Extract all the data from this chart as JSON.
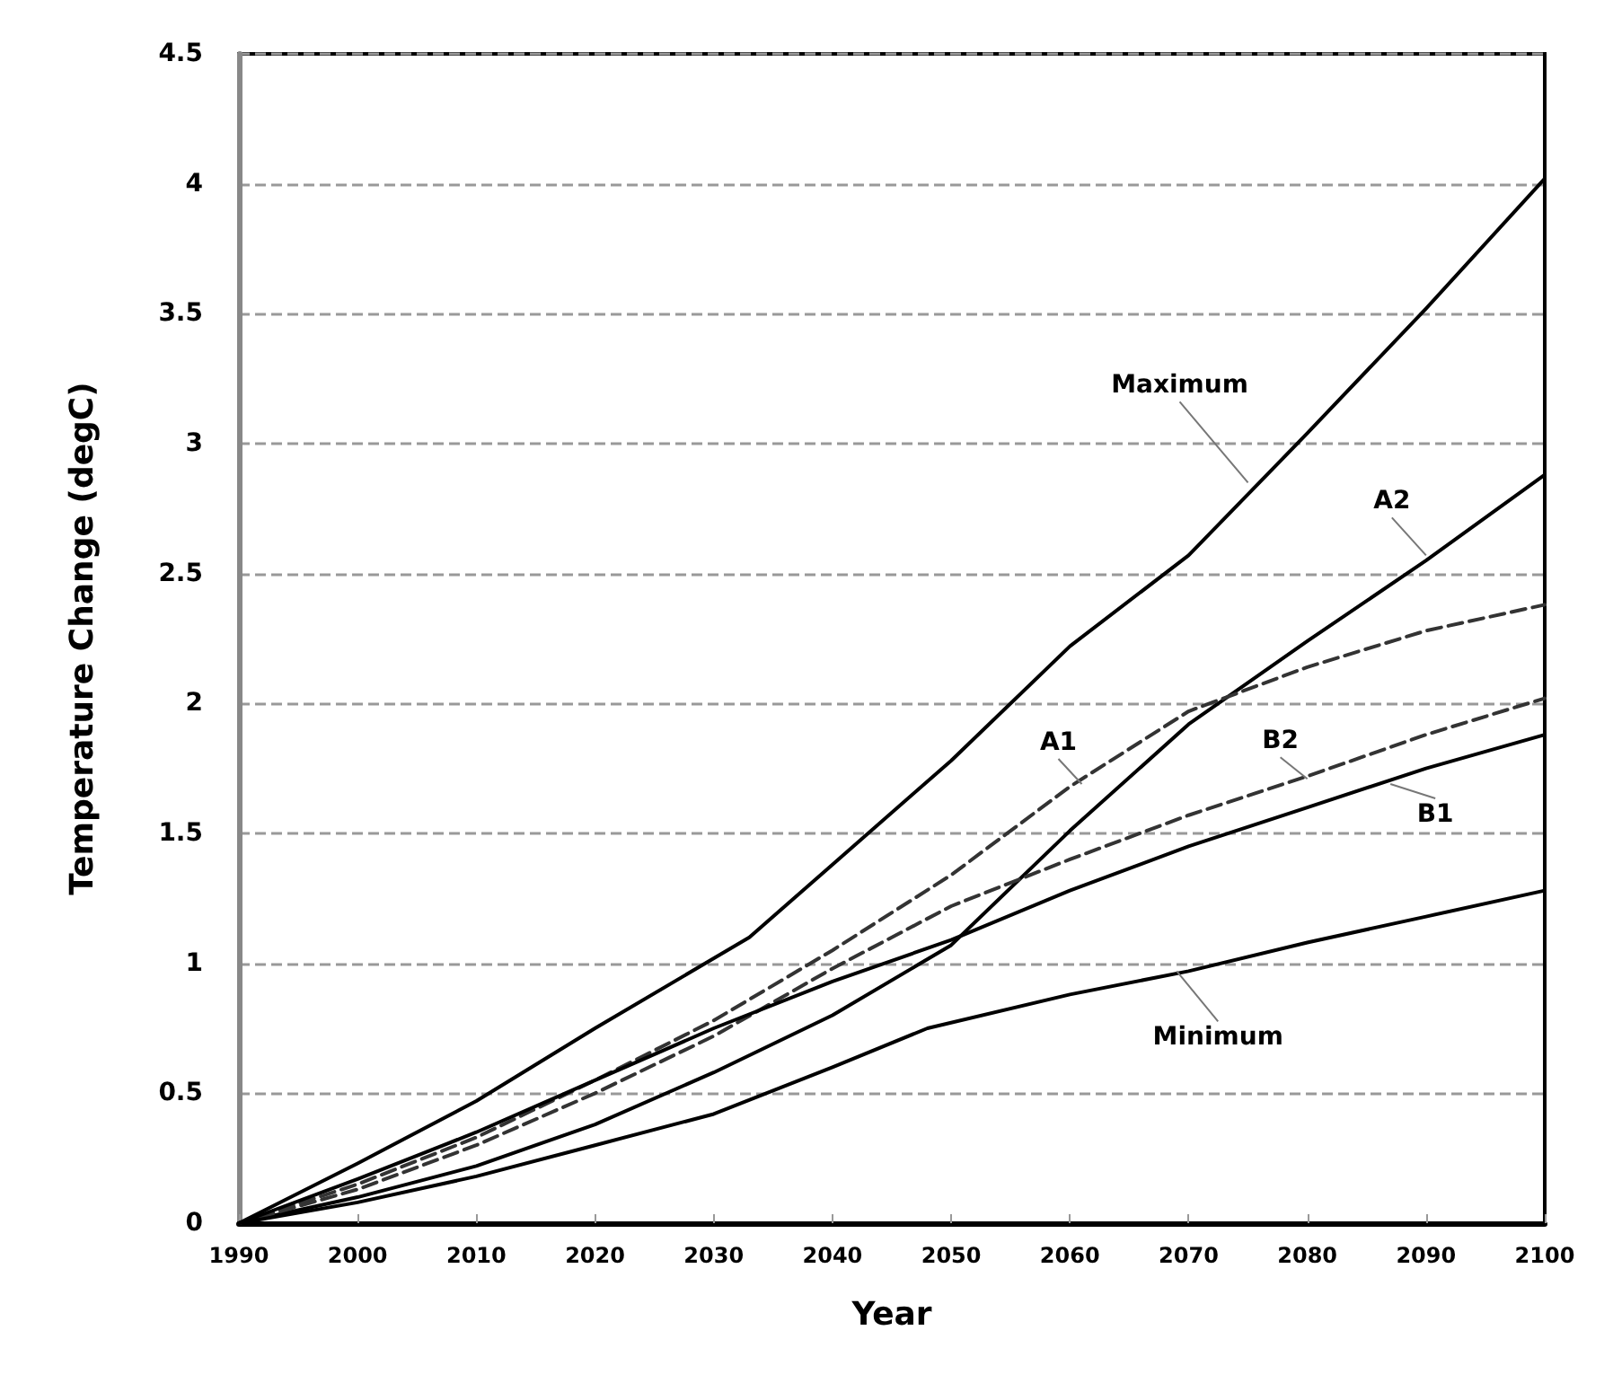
{
  "chart_data": {
    "type": "line",
    "xlabel": "Year",
    "ylabel": "Temperature Change (degC)",
    "x": [
      1990,
      2000,
      2010,
      2020,
      2030,
      2040,
      2050,
      2060,
      2070,
      2080,
      2090,
      2100
    ],
    "series": [
      {
        "color": "#000000",
        "x": [
          1990,
          2000,
          2010,
          2020,
          2033,
          2040,
          2050,
          2060,
          2070,
          2080,
          2090,
          2100
        ],
        "values": [
          0,
          0.23,
          0.47,
          0.75,
          1.1,
          1.38,
          1.78,
          2.22,
          2.57,
          3.04,
          3.52,
          4.02
        ]
      },
      {
        "color": "#000000",
        "values": [
          0,
          0.1,
          0.22,
          0.38,
          0.58,
          0.8,
          1.07,
          1.51,
          1.92,
          2.24,
          2.55,
          2.88
        ]
      },
      {
        "color": "#333333",
        "line_style": "dashed",
        "values": [
          0,
          0.15,
          0.33,
          0.55,
          0.78,
          1.05,
          1.34,
          1.68,
          1.97,
          2.14,
          2.28,
          2.38
        ]
      },
      {
        "color": "#333333",
        "line_style": "dashed",
        "values": [
          0,
          0.13,
          0.3,
          0.5,
          0.72,
          0.98,
          1.22,
          1.4,
          1.57,
          1.72,
          1.88,
          2.02
        ]
      },
      {
        "color": "#000000",
        "values": [
          0,
          0.17,
          0.35,
          0.55,
          0.75,
          0.93,
          1.09,
          1.28,
          1.45,
          1.6,
          1.75,
          1.88
        ]
      },
      {
        "color": "#000000",
        "x": [
          1990,
          2000,
          2010,
          2020,
          2030,
          2040,
          2048,
          2060,
          2070,
          2080,
          2090,
          2100
        ],
        "values": [
          0,
          0.08,
          0.18,
          0.3,
          0.42,
          0.6,
          0.75,
          0.88,
          0.97,
          1.08,
          1.18,
          1.28
        ]
      }
    ],
    "annotations": [
      {
        "text": "Maximum",
        "x": 2075,
        "y": 2.85
      },
      {
        "text": "A2",
        "x": 2090,
        "y": 2.57
      },
      {
        "text": "A1",
        "x": 2061,
        "y": 1.69
      },
      {
        "text": "B2",
        "x": 2080,
        "y": 1.71
      },
      {
        "text": "B1",
        "x": 2087,
        "y": 1.69
      },
      {
        "text": "Minimum",
        "x": 2069,
        "y": 0.97
      }
    ],
    "xlim": [
      1990,
      2100
    ],
    "xticks": [
      1990,
      2000,
      2010,
      2020,
      2030,
      2040,
      2050,
      2060,
      2070,
      2080,
      2090,
      2100
    ],
    "ylim": [
      0,
      4.5
    ],
    "yticks": [
      0,
      0.5,
      1,
      1.5,
      2,
      2.5,
      3,
      3.5,
      4,
      4.5
    ],
    "grid": "y",
    "marker": "none",
    "line_style": "solid"
  }
}
